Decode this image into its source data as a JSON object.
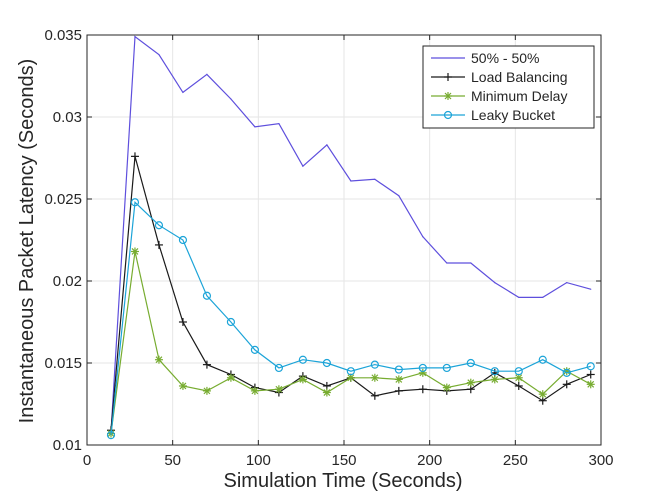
{
  "chart_data": {
    "type": "line",
    "title": "",
    "xlabel": "Simulation Time (Seconds)",
    "ylabel": "Instantaneous Packet Latency (Seconds)",
    "xlim": [
      0,
      300
    ],
    "ylim": [
      0.01,
      0.035
    ],
    "xticks": [
      0,
      50,
      100,
      150,
      200,
      250,
      300
    ],
    "xtick_labels": [
      "0",
      "50",
      "100",
      "150",
      "200",
      "250",
      "300"
    ],
    "yticks": [
      0.01,
      0.015,
      0.02,
      0.025,
      0.03,
      0.035
    ],
    "ytick_labels": [
      "0.01",
      "0.015",
      "0.02",
      "0.025",
      "0.03",
      "0.035"
    ],
    "grid": true,
    "legend_position": "top-right",
    "x": [
      14,
      28,
      42,
      56,
      70,
      84,
      98,
      112,
      126,
      140,
      154,
      168,
      182,
      196,
      210,
      224,
      238,
      252,
      266,
      280,
      294
    ],
    "series": [
      {
        "name": "50% - 50%",
        "color": "#5e4fdd",
        "marker": "none",
        "values": [
          0.0108,
          0.0349,
          0.0338,
          0.0315,
          0.0326,
          0.0311,
          0.0294,
          0.0296,
          0.027,
          0.0283,
          0.0261,
          0.0262,
          0.0252,
          0.0227,
          0.0211,
          0.0211,
          0.0199,
          0.019,
          0.019,
          0.0199,
          0.0195
        ]
      },
      {
        "name": "Load Balancing",
        "color": "#1a1a1a",
        "marker": "plus",
        "values": [
          0.0109,
          0.0276,
          0.0222,
          0.0175,
          0.0149,
          0.0143,
          0.0135,
          0.0132,
          0.0142,
          0.0136,
          0.0141,
          0.013,
          0.0133,
          0.0134,
          0.0133,
          0.0134,
          0.0144,
          0.0136,
          0.0127,
          0.0137,
          0.0143
        ]
      },
      {
        "name": "Minimum Delay",
        "color": "#77ac30",
        "marker": "asterisk",
        "values": [
          0.0107,
          0.0218,
          0.0152,
          0.0136,
          0.0133,
          0.0141,
          0.0133,
          0.0134,
          0.014,
          0.0132,
          0.0141,
          0.0141,
          0.014,
          0.0144,
          0.0135,
          0.0138,
          0.014,
          0.0141,
          0.0131,
          0.0145,
          0.0137
        ]
      },
      {
        "name": "Leaky Bucket",
        "color": "#1ca4d8",
        "marker": "circle",
        "values": [
          0.0106,
          0.0248,
          0.0234,
          0.0225,
          0.0191,
          0.0175,
          0.0158,
          0.0147,
          0.0152,
          0.015,
          0.0145,
          0.0149,
          0.0146,
          0.0147,
          0.0147,
          0.015,
          0.0145,
          0.0145,
          0.0152,
          0.0144,
          0.0148
        ]
      }
    ]
  }
}
